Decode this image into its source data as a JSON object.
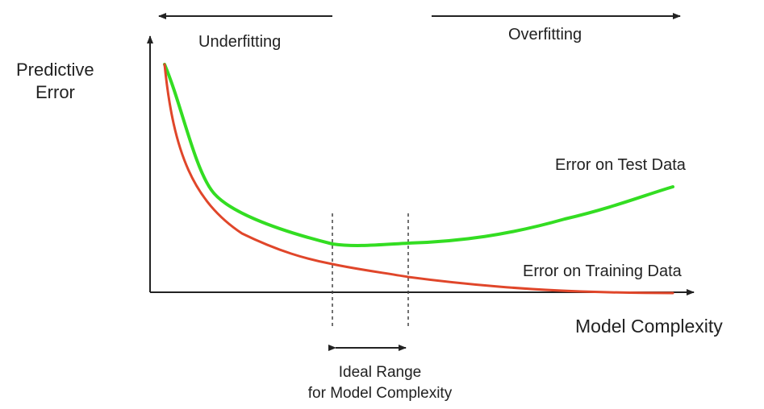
{
  "labels": {
    "underfitting": "Underfitting",
    "overfitting": "Overfitting",
    "y_axis_line1": "Predictive",
    "y_axis_line2": "Error",
    "x_axis": "Model Complexity",
    "test_curve": "Error on Test Data",
    "training_curve": "Error on Training Data",
    "ideal_line1": "Ideal Range",
    "ideal_line2": "for Model Complexity"
  },
  "colors": {
    "test_curve": "#33dd22",
    "training_curve": "#e0462a",
    "axis": "#222222",
    "dashed": "#444444"
  }
}
